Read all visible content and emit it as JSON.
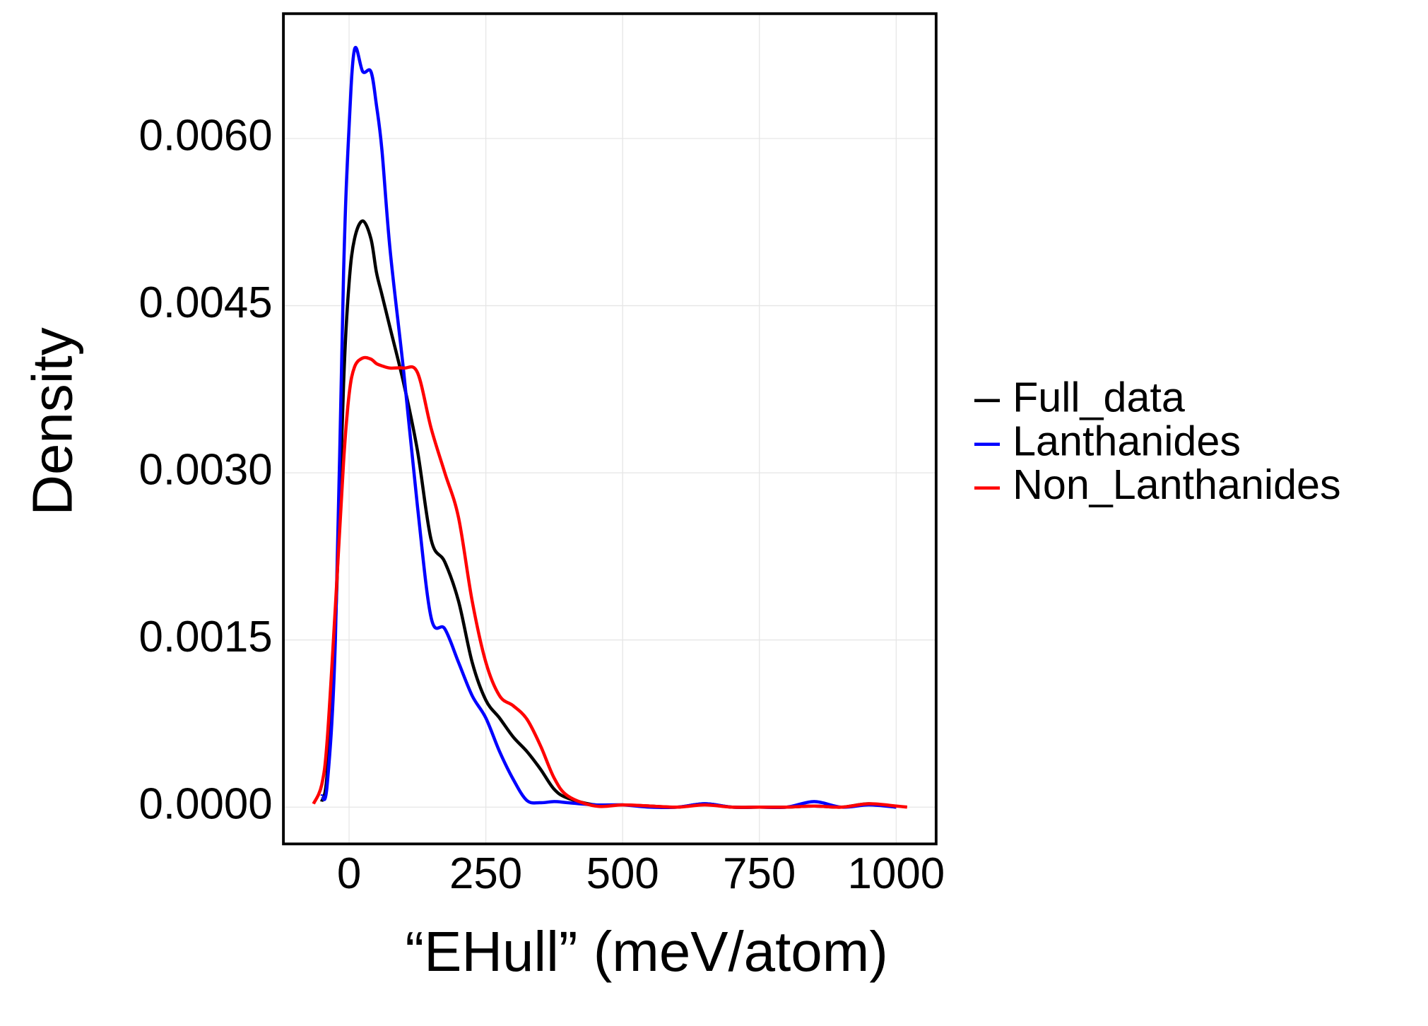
{
  "chart_data": {
    "type": "line",
    "x_label": "“EHull” (meV/atom)",
    "y_label": "Density",
    "x": [
      -65,
      -50,
      -40,
      -25,
      -10,
      0,
      10,
      25,
      40,
      50,
      60,
      75,
      100,
      125,
      150,
      175,
      200,
      225,
      250,
      275,
      300,
      325,
      350,
      375,
      400,
      450,
      500,
      550,
      600,
      650,
      700,
      750,
      800,
      850,
      900,
      950,
      1000,
      1020
    ],
    "series": [
      {
        "name": "Full_data",
        "color": "#000000",
        "values": [
          null,
          5e-05,
          0.0003,
          0.0016,
          0.0038,
          0.0047,
          0.0051,
          0.00526,
          0.0051,
          0.0048,
          0.0046,
          0.0043,
          0.0038,
          0.0032,
          0.0024,
          0.0022,
          0.00185,
          0.0013,
          0.00096,
          0.0008,
          0.00063,
          0.0005,
          0.00034,
          0.00016,
          8e-05,
          2e-05,
          2e-05,
          1e-05,
          0,
          3e-05,
          0,
          0,
          0,
          1e-05,
          0,
          3e-05,
          0,
          null
        ]
      },
      {
        "name": "Lanthanides",
        "color": "#0000ff",
        "values": [
          null,
          0.0001,
          0.0002,
          0.0015,
          0.0048,
          0.0061,
          0.0068,
          0.0066,
          0.0066,
          0.0063,
          0.0059,
          0.005,
          0.0039,
          0.0027,
          0.0017,
          0.0016,
          0.0013,
          0.001,
          0.0008,
          0.0005,
          0.00025,
          6e-05,
          4e-05,
          5e-05,
          4e-05,
          2e-05,
          2e-05,
          0,
          0,
          3e-05,
          0,
          0,
          0,
          5e-05,
          0,
          2e-05,
          0,
          null
        ]
      },
      {
        "name": "Non_Lanthanides",
        "color": "#ff0000",
        "values": [
          3e-05,
          0.0002,
          0.0006,
          0.0018,
          0.0031,
          0.0037,
          0.00395,
          0.00403,
          0.00402,
          0.00398,
          0.00396,
          0.00394,
          0.00394,
          0.0039,
          0.0034,
          0.003,
          0.0026,
          0.00185,
          0.0013,
          0.001,
          0.00091,
          0.00079,
          0.00055,
          0.00026,
          0.0001,
          1e-05,
          2e-05,
          1e-05,
          0,
          2e-05,
          0,
          0,
          0,
          1e-05,
          0,
          3e-05,
          1e-05,
          0
        ]
      }
    ],
    "xlim": [
      -120,
      1073
    ],
    "ylim": [
      -0.00033,
      0.00712
    ],
    "xticks": [
      0,
      250,
      500,
      750,
      1000
    ],
    "yticks": [
      {
        "value": 0,
        "label": "0.0000"
      },
      {
        "value": 0.0015,
        "label": "0.0015"
      },
      {
        "value": 0.003,
        "label": "0.0030"
      },
      {
        "value": 0.0045,
        "label": "0.0045"
      },
      {
        "value": 0.006,
        "label": "0.0060"
      }
    ],
    "grid": true,
    "legend": "right"
  }
}
